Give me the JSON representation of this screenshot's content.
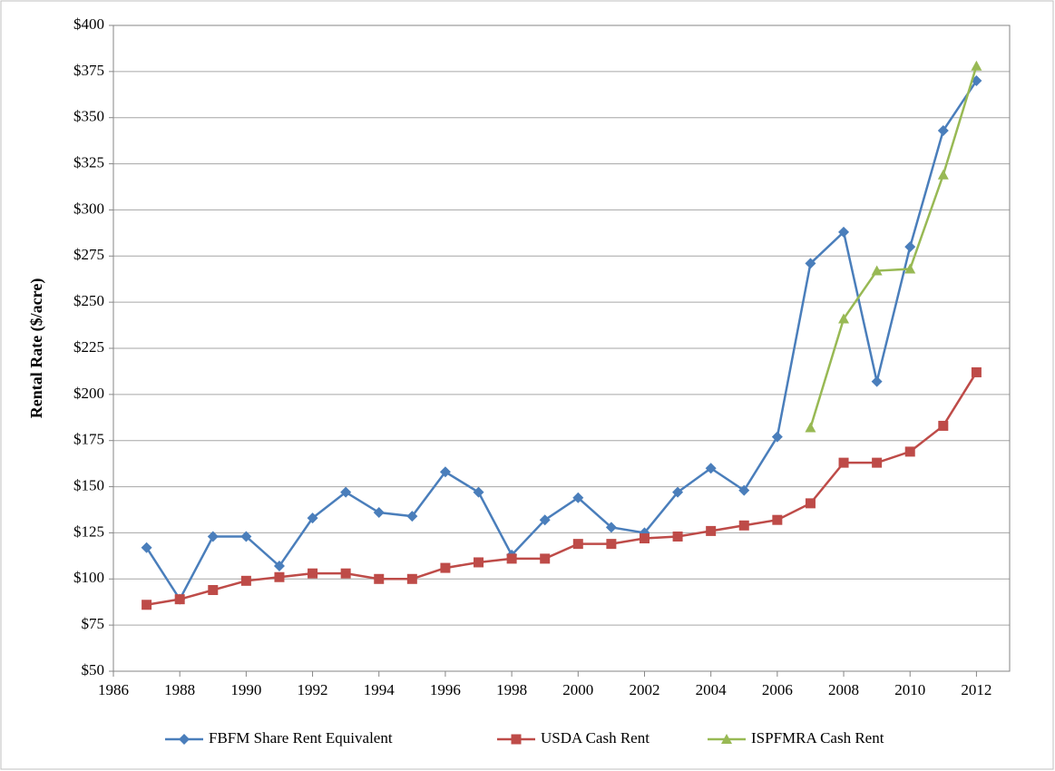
{
  "chart_data": {
    "type": "line",
    "y_label": "Rental Rate ($/acre)",
    "x": [
      1987,
      1988,
      1989,
      1990,
      1991,
      1992,
      1993,
      1994,
      1995,
      1996,
      1997,
      1998,
      1999,
      2000,
      2001,
      2002,
      2003,
      2004,
      2005,
      2006,
      2007,
      2008,
      2009,
      2010,
      2011,
      2012
    ],
    "series": [
      {
        "name": "FBFM Share Rent Equivalent",
        "color": "#4a7ebb",
        "marker": "diamond",
        "values": [
          117,
          89,
          123,
          123,
          107,
          133,
          147,
          136,
          134,
          158,
          147,
          113,
          132,
          144,
          128,
          125,
          147,
          160,
          148,
          177,
          271,
          288,
          207,
          280,
          343,
          370
        ]
      },
      {
        "name": "USDA Cash Rent",
        "color": "#be4b48",
        "marker": "square",
        "values": [
          86,
          89,
          94,
          99,
          101,
          103,
          103,
          100,
          100,
          106,
          109,
          111,
          111,
          119,
          119,
          122,
          123,
          126,
          129,
          132,
          141,
          163,
          163,
          169,
          183,
          212
        ]
      },
      {
        "name": "ISPFMRA Cash Rent",
        "color": "#98b954",
        "marker": "triangle",
        "values": [
          null,
          null,
          null,
          null,
          null,
          null,
          null,
          null,
          null,
          null,
          null,
          null,
          null,
          null,
          null,
          null,
          null,
          null,
          null,
          null,
          182,
          241,
          267,
          268,
          319,
          378
        ]
      }
    ],
    "xlim": [
      1986,
      2013
    ],
    "xticks": [
      1986,
      1988,
      1990,
      1992,
      1994,
      1996,
      1998,
      2000,
      2002,
      2004,
      2006,
      2008,
      2010,
      2012
    ],
    "ylim": [
      50,
      400
    ],
    "yticks": [
      {
        "value": 50,
        "label": "$50"
      },
      {
        "value": 75,
        "label": "$75"
      },
      {
        "value": 100,
        "label": "$100"
      },
      {
        "value": 125,
        "label": "$125"
      },
      {
        "value": 150,
        "label": "$150"
      },
      {
        "value": 175,
        "label": "$175"
      },
      {
        "value": 200,
        "label": "$200"
      },
      {
        "value": 225,
        "label": "$225"
      },
      {
        "value": 250,
        "label": "$250"
      },
      {
        "value": 275,
        "label": "$275"
      },
      {
        "value": 300,
        "label": "$300"
      },
      {
        "value": 325,
        "label": "$325"
      },
      {
        "value": 350,
        "label": "$350"
      },
      {
        "value": 375,
        "label": "$375"
      },
      {
        "value": 400,
        "label": "$400"
      }
    ],
    "grid": true,
    "legend": "bottom"
  }
}
